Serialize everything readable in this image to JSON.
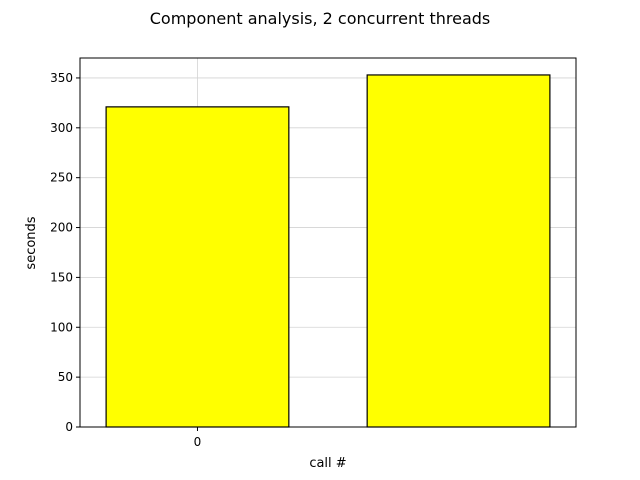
{
  "chart_data": {
    "type": "bar",
    "title": "Component analysis, 2 concurrent threads",
    "xlabel": "call #",
    "ylabel": "seconds",
    "categories": [
      "0",
      ""
    ],
    "values": [
      321,
      353
    ],
    "ylim": [
      0,
      370
    ],
    "yticks": [
      0,
      50,
      100,
      150,
      200,
      250,
      300,
      350
    ],
    "xtick_labels": [
      "0"
    ],
    "grid": true,
    "bar_color": "#ffff00",
    "bar_edge_color": "#000000",
    "grid_color": "#d3d3d3"
  }
}
